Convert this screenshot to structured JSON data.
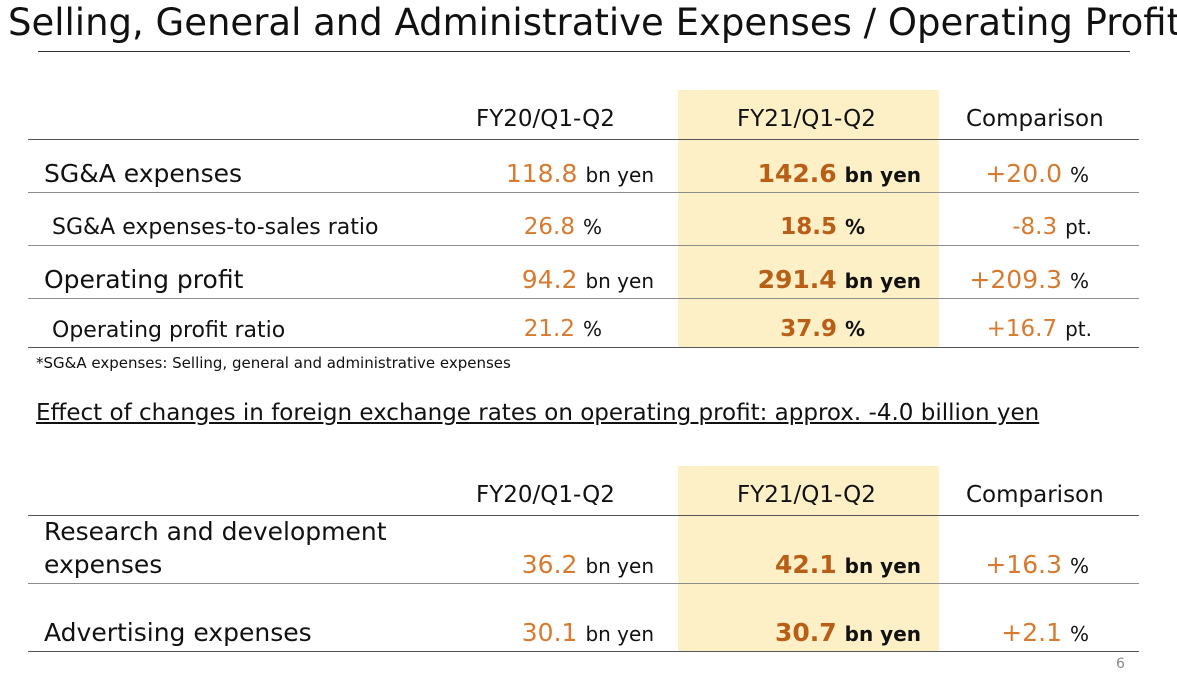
{
  "title": "Selling, General and Administrative Expenses / Operating Profit",
  "table1": {
    "headers": [
      "FY20/Q1-Q2",
      "FY21/Q1-Q2",
      "Comparison"
    ],
    "rows": [
      {
        "label": "SG&A expenses",
        "fy20": "118.8",
        "fy20_unit": "bn yen",
        "fy21": "142.6",
        "fy21_unit": "bn yen",
        "cmp": "+20.0",
        "cmp_unit": "%"
      },
      {
        "label": "SG&A expenses-to-sales ratio",
        "fy20": "26.8",
        "fy20_unit": "%",
        "fy21": "18.5",
        "fy21_unit": "%",
        "cmp": "-8.3",
        "cmp_unit": "pt."
      },
      {
        "label": "Operating profit",
        "fy20": "94.2",
        "fy20_unit": "bn yen",
        "fy21": "291.4",
        "fy21_unit": "bn yen",
        "cmp": "+209.3",
        "cmp_unit": "%"
      },
      {
        "label": "Operating profit ratio",
        "fy20": "21.2",
        "fy20_unit": "%",
        "fy21": "37.9",
        "fy21_unit": "%",
        "cmp": "+16.7",
        "cmp_unit": "pt."
      }
    ]
  },
  "footnote": "*SG&A expenses: Selling, general and administrative expenses",
  "fx_effect": "Effect of changes in foreign exchange rates on operating profit: approx. -4.0 billion yen",
  "table2": {
    "headers": [
      "FY20/Q1-Q2",
      "FY21/Q1-Q2",
      "Comparison"
    ],
    "rows": [
      {
        "label_line1": "Research and development",
        "label_line2": "expenses",
        "fy20": "36.2",
        "fy20_unit": "bn yen",
        "fy21": "42.1",
        "fy21_unit": "bn yen",
        "cmp": "+16.3",
        "cmp_unit": "%"
      },
      {
        "label": "Advertising expenses",
        "fy20": "30.1",
        "fy20_unit": "bn yen",
        "fy21": "30.7",
        "fy21_unit": "bn yen",
        "cmp": "+2.1",
        "cmp_unit": "%"
      }
    ]
  },
  "page_number": "6"
}
